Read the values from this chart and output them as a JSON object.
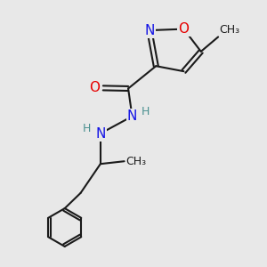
{
  "bg_color": "#e8e8e8",
  "bond_color": "#1a1a1a",
  "N_color": "#1414e6",
  "O_color": "#e60000",
  "H_color": "#4a9090",
  "font_size_atom": 11,
  "font_size_H": 9,
  "font_size_methyl": 9,
  "lw": 1.5,
  "xlim": [
    0,
    10
  ],
  "ylim": [
    0,
    10
  ]
}
